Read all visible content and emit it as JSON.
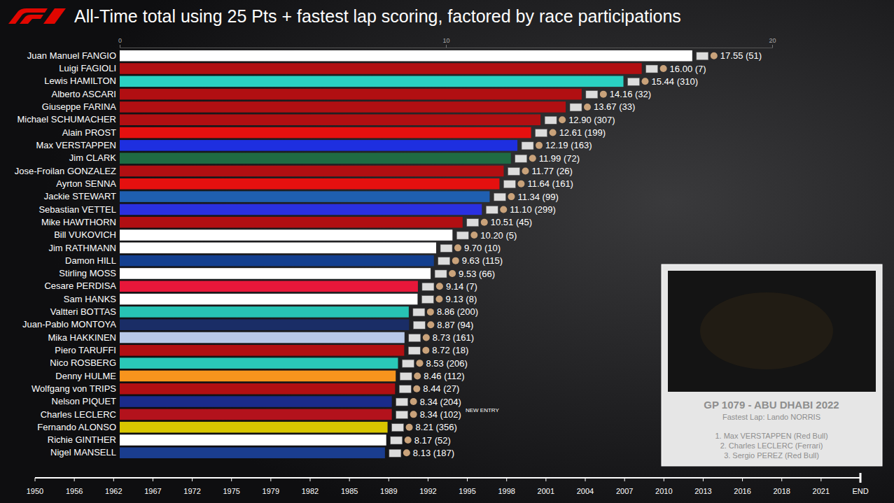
{
  "chart_data": {
    "type": "bar",
    "orientation": "horizontal",
    "title": "All-Time total using 25 Pts + fastest lap scoring, factored by race participations",
    "categories": [
      "Juan Manuel FANGIO",
      "Luigi FAGIOLI",
      "Lewis HAMILTON",
      "Alberto ASCARI",
      "Giuseppe FARINA",
      "Michael SCHUMACHER",
      "Alain PROST",
      "Max VERSTAPPEN",
      "Jim CLARK",
      "Jose-Froilan GONZALEZ",
      "Ayrton SENNA",
      "Jackie STEWART",
      "Sebastian VETTEL",
      "Mike HAWTHORN",
      "Bill VUKOVICH",
      "Jim RATHMANN",
      "Damon HILL",
      "Stirling MOSS",
      "Cesare PERDISA",
      "Sam HANKS",
      "Valtteri BOTTAS",
      "Juan-Pablo MONTOYA",
      "Mika HAKKINEN",
      "Piero TARUFFI",
      "Nico ROSBERG",
      "Denny HULME",
      "Wolfgang von TRIPS",
      "Nelson PIQUET",
      "Charles LECLERC",
      "Fernando ALONSO",
      "Richie GINTHER",
      "Nigel MANSELL"
    ],
    "values": [
      17.55,
      16.0,
      15.44,
      14.16,
      13.67,
      12.9,
      12.61,
      12.19,
      11.99,
      11.77,
      11.64,
      11.34,
      11.1,
      10.51,
      10.2,
      9.7,
      9.63,
      9.53,
      9.14,
      9.13,
      8.86,
      8.87,
      8.73,
      8.72,
      8.53,
      8.46,
      8.44,
      8.34,
      8.34,
      8.21,
      8.17,
      8.13
    ],
    "value_labels": [
      "17.55 (51)",
      "16.00 (7)",
      "15.44 (310)",
      "14.16 (32)",
      "13.67 (33)",
      "12.90 (307)",
      "12.61 (199)",
      "12.19 (163)",
      "11.99 (72)",
      "11.77 (26)",
      "11.64 (161)",
      "11.34 (99)",
      "11.10 (299)",
      "10.51 (45)",
      "10.20 (5)",
      "9.70 (10)",
      "9.63 (115)",
      "9.53 (66)",
      "9.14 (7)",
      "9.13 (8)",
      "8.86 (200)",
      "8.87 (94)",
      "8.73 (161)",
      "8.72 (18)",
      "8.53 (206)",
      "8.46 (112)",
      "8.44 (27)",
      "8.34 (204)",
      "8.34 (102)",
      "8.21 (356)",
      "8.17 (52)",
      "8.13 (187)"
    ],
    "colors": [
      "#ffffff",
      "#b10f12",
      "#2ad1c2",
      "#b10f12",
      "#b10f12",
      "#b10f12",
      "#e5100f",
      "#1e2fe0",
      "#1f6b43",
      "#b10f12",
      "#e5100f",
      "#1f5fb0",
      "#2a30e0",
      "#b10f12",
      "#ffffff",
      "#ffffff",
      "#133f8f",
      "#ffffff",
      "#e8173a",
      "#ffffff",
      "#27c3b4",
      "#1a2d66",
      "#b8c8e8",
      "#b10f12",
      "#2ac8b8",
      "#f7941d",
      "#b10f12",
      "#1a2b8a",
      "#b3121c",
      "#d8c600",
      "#ffffff",
      "#1a3d8f"
    ],
    "xlim": [
      0,
      20
    ],
    "xticks": [
      0,
      10,
      20
    ],
    "data_labels": true,
    "grid": false,
    "annotations": [
      {
        "text": "NEW ENTRY",
        "category": "Charles LECLERC"
      }
    ]
  },
  "timeline": {
    "labels": [
      1950,
      1956,
      1962,
      1967,
      1972,
      1975,
      1979,
      1982,
      1985,
      1989,
      1992,
      1995,
      1998,
      2001,
      2004,
      2007,
      2010,
      2013,
      2016,
      2018,
      2021,
      "END"
    ],
    "current": "END"
  },
  "race_panel": {
    "title": "GP 1079 - ABU DHABI 2022",
    "fastest_lap": "Fastest Lap: Lando NORRIS",
    "podium": [
      "1. Max VERSTAPPEN (Red Bull)",
      "2. Charles LECLERC (Ferrari)",
      "3. Sergio PEREZ (Red Bull)"
    ]
  }
}
